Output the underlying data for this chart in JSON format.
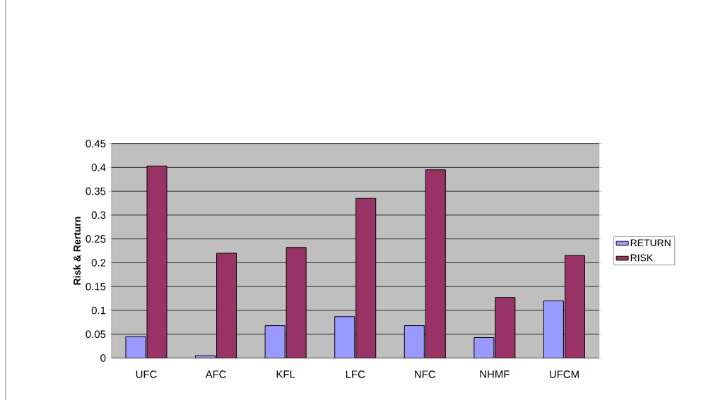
{
  "chart_data": {
    "type": "bar",
    "ylabel": "Risk & Rerturn",
    "categories": [
      "UFC",
      "AFC",
      "KFL",
      "LFC",
      "NFC",
      "NHMF",
      "UFCM"
    ],
    "series": [
      {
        "name": "RETURN",
        "color": "#9999ff",
        "values": [
          0.045,
          0.005,
          0.068,
          0.087,
          0.068,
          0.043,
          0.12
        ]
      },
      {
        "name": "RISK",
        "color": "#993366",
        "values": [
          0.403,
          0.22,
          0.232,
          0.335,
          0.395,
          0.127,
          0.215
        ]
      }
    ],
    "ylim": [
      0,
      0.45
    ],
    "yticks": [
      0,
      0.05,
      0.1,
      0.15,
      0.2,
      0.25,
      0.3,
      0.35,
      0.4,
      0.45
    ],
    "grid": "y",
    "legend": "right"
  }
}
